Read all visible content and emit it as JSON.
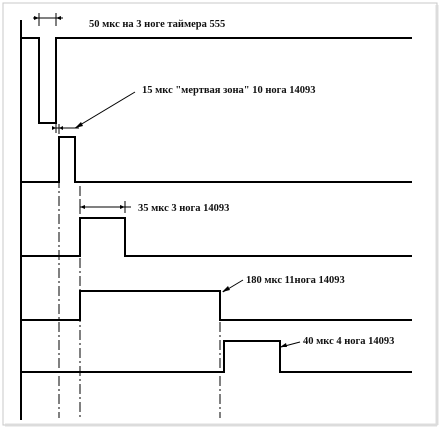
{
  "colors": {
    "ink": "#000000",
    "frame_border": "#b8b8b8",
    "frame_shadow": "#d8d8d8",
    "background": "#ffffff"
  },
  "labels": {
    "pulse_555": "50 мкс на 3 ноге таймера 555",
    "dead_zone": "15 мкс \"мертвая зона\" 10 нога 14093",
    "pulse_pin3": "35 мкс 3 нога 14093",
    "pulse_pin11": "180 мкс 11нога 14093",
    "pulse_pin4": "40 мкс 4 нога 14093"
  }
}
